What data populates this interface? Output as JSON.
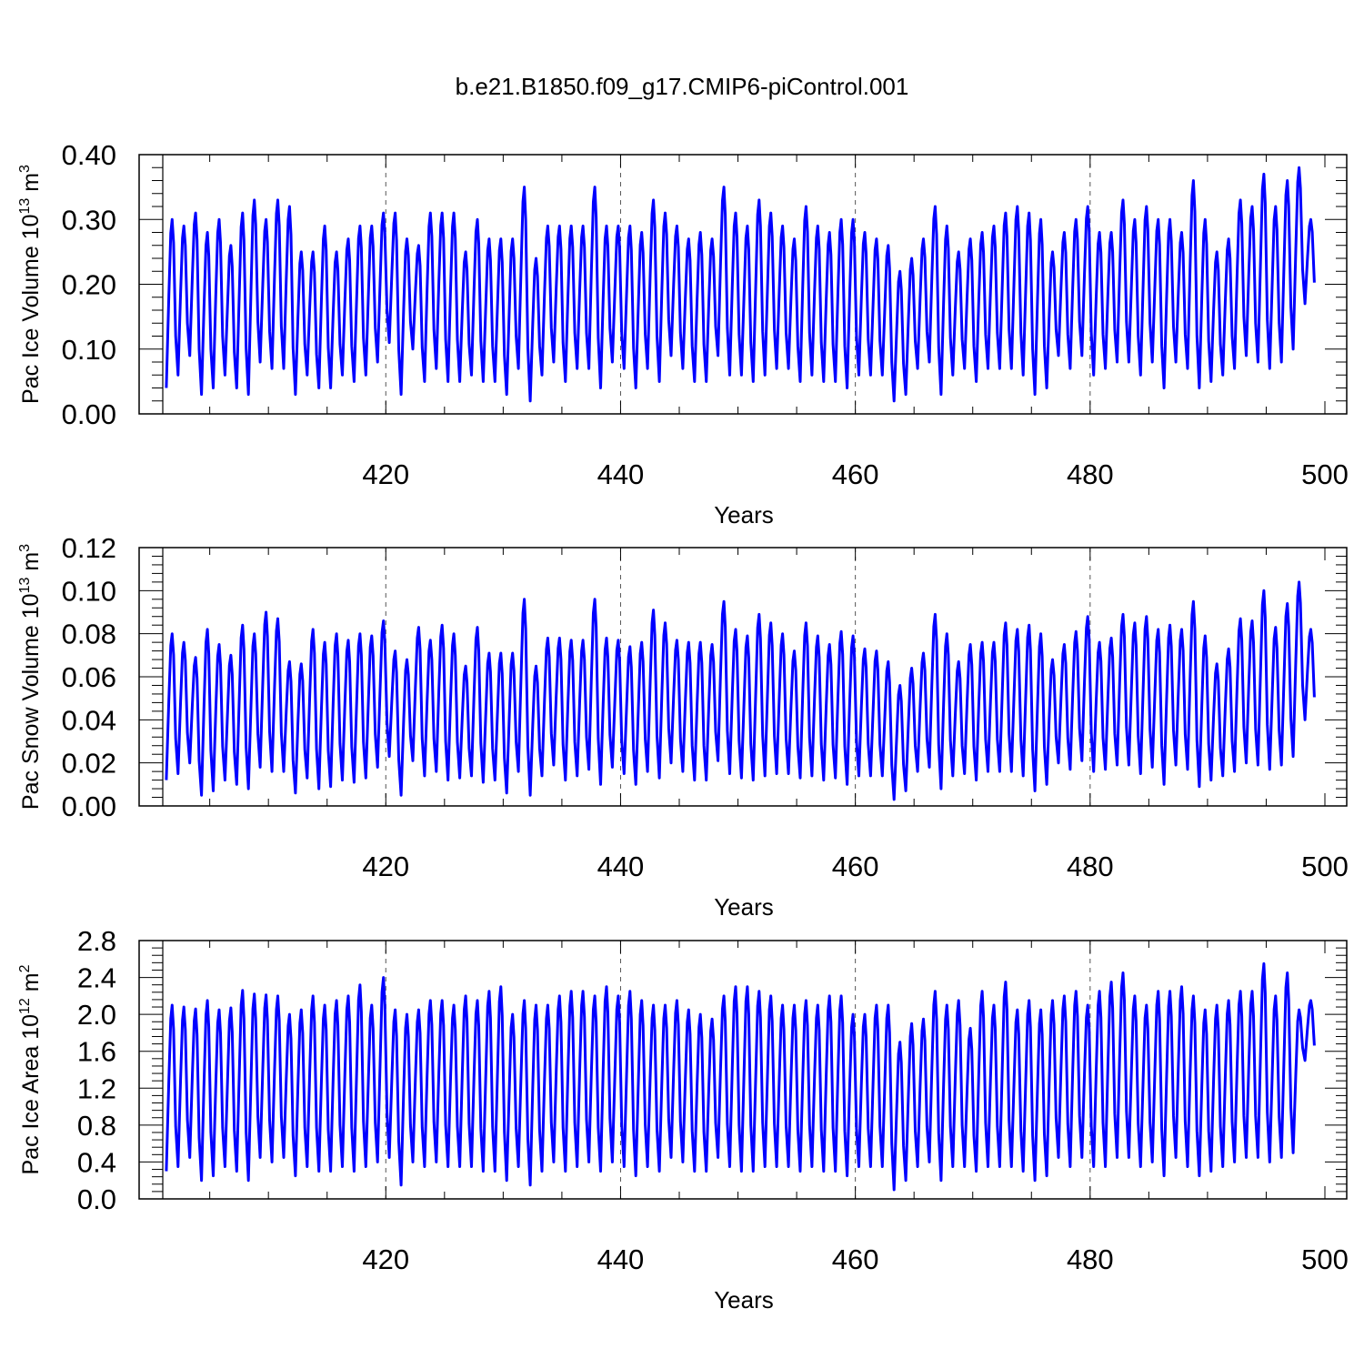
{
  "title": "b.e21.B1850.f09_g17.CMIP6-piControl.001",
  "colors": {
    "series": "#0000ff",
    "axes": "#000000",
    "grid": "#555555"
  },
  "chart_data": [
    {
      "type": "line",
      "series_name": "Pac Ice Volume",
      "ylabel_main": "Pac Ice Volume 10",
      "ylabel_exp": "13",
      "ylabel_unit": " m",
      "ylabel_unit_exp": "3",
      "xlabel": "Years",
      "xlim": [
        401,
        500
      ],
      "ylim": [
        0.0,
        0.4
      ],
      "yticks": [
        0.0,
        0.1,
        0.2,
        0.3,
        0.4
      ],
      "ytick_labels": [
        "0.00",
        "0.10",
        "0.20",
        "0.30",
        "0.40"
      ],
      "xticks": [
        420,
        440,
        460,
        480,
        500
      ],
      "xtick_labels": [
        "420",
        "440",
        "460",
        "480",
        "500"
      ],
      "vgrid": [
        420,
        440,
        460,
        480
      ],
      "annual_max": [
        0.3,
        0.29,
        0.31,
        0.28,
        0.3,
        0.26,
        0.31,
        0.33,
        0.3,
        0.33,
        0.32,
        0.25,
        0.25,
        0.29,
        0.25,
        0.27,
        0.29,
        0.29,
        0.31,
        0.31,
        0.27,
        0.26,
        0.31,
        0.31,
        0.31,
        0.25,
        0.3,
        0.27,
        0.27,
        0.27,
        0.35,
        0.24,
        0.29,
        0.29,
        0.29,
        0.29,
        0.35,
        0.29,
        0.29,
        0.29,
        0.28,
        0.33,
        0.31,
        0.29,
        0.27,
        0.28,
        0.27,
        0.35,
        0.31,
        0.29,
        0.33,
        0.31,
        0.29,
        0.27,
        0.32,
        0.29,
        0.28,
        0.3,
        0.3,
        0.28,
        0.27,
        0.26,
        0.22,
        0.24,
        0.27,
        0.32,
        0.29,
        0.25,
        0.27,
        0.28,
        0.29,
        0.31,
        0.32,
        0.31,
        0.3,
        0.25,
        0.28,
        0.3,
        0.32,
        0.28,
        0.28,
        0.33,
        0.3,
        0.32,
        0.3,
        0.3,
        0.28,
        0.36,
        0.3,
        0.25,
        0.27,
        0.33,
        0.32,
        0.37,
        0.32,
        0.36,
        0.38,
        0.3
      ],
      "annual_min": [
        0.04,
        0.06,
        0.09,
        0.03,
        0.04,
        0.06,
        0.04,
        0.03,
        0.08,
        0.07,
        0.07,
        0.03,
        0.06,
        0.04,
        0.04,
        0.06,
        0.05,
        0.06,
        0.08,
        0.11,
        0.03,
        0.1,
        0.05,
        0.07,
        0.05,
        0.05,
        0.06,
        0.05,
        0.05,
        0.03,
        0.07,
        0.02,
        0.06,
        0.08,
        0.05,
        0.07,
        0.07,
        0.04,
        0.08,
        0.07,
        0.04,
        0.07,
        0.05,
        0.09,
        0.07,
        0.05,
        0.05,
        0.09,
        0.06,
        0.06,
        0.05,
        0.06,
        0.07,
        0.07,
        0.05,
        0.06,
        0.05,
        0.05,
        0.04,
        0.06,
        0.06,
        0.06,
        0.02,
        0.03,
        0.07,
        0.08,
        0.03,
        0.06,
        0.07,
        0.05,
        0.07,
        0.07,
        0.07,
        0.06,
        0.03,
        0.04,
        0.09,
        0.07,
        0.09,
        0.06,
        0.07,
        0.08,
        0.08,
        0.06,
        0.08,
        0.04,
        0.08,
        0.07,
        0.04,
        0.05,
        0.06,
        0.07,
        0.09,
        0.08,
        0.07,
        0.08,
        0.1,
        0.17
      ]
    },
    {
      "type": "line",
      "series_name": "Pac Snow Volume",
      "ylabel_main": "Pac Snow Volume 10",
      "ylabel_exp": "13",
      "ylabel_unit": " m",
      "ylabel_unit_exp": "3",
      "xlabel": "Years",
      "xlim": [
        401,
        500
      ],
      "ylim": [
        0.0,
        0.12
      ],
      "yticks": [
        0.0,
        0.02,
        0.04,
        0.06,
        0.08,
        0.1,
        0.12
      ],
      "ytick_labels": [
        "0.00",
        "0.02",
        "0.04",
        "0.06",
        "0.08",
        "0.10",
        "0.12"
      ],
      "xticks": [
        420,
        440,
        460,
        480,
        500
      ],
      "xtick_labels": [
        "420",
        "440",
        "460",
        "480",
        "500"
      ],
      "vgrid": [
        420,
        440,
        460,
        480
      ],
      "annual_max": [
        0.08,
        0.076,
        0.069,
        0.082,
        0.075,
        0.07,
        0.084,
        0.08,
        0.09,
        0.087,
        0.067,
        0.066,
        0.082,
        0.076,
        0.08,
        0.077,
        0.08,
        0.079,
        0.086,
        0.072,
        0.068,
        0.083,
        0.077,
        0.084,
        0.08,
        0.065,
        0.083,
        0.071,
        0.071,
        0.071,
        0.096,
        0.065,
        0.078,
        0.078,
        0.077,
        0.077,
        0.096,
        0.078,
        0.077,
        0.074,
        0.076,
        0.091,
        0.085,
        0.077,
        0.076,
        0.076,
        0.075,
        0.095,
        0.082,
        0.079,
        0.089,
        0.085,
        0.08,
        0.072,
        0.085,
        0.079,
        0.075,
        0.081,
        0.079,
        0.073,
        0.072,
        0.067,
        0.056,
        0.064,
        0.071,
        0.089,
        0.08,
        0.067,
        0.075,
        0.076,
        0.076,
        0.085,
        0.082,
        0.084,
        0.08,
        0.068,
        0.075,
        0.081,
        0.088,
        0.076,
        0.078,
        0.089,
        0.085,
        0.088,
        0.082,
        0.084,
        0.082,
        0.095,
        0.079,
        0.066,
        0.073,
        0.087,
        0.086,
        0.1,
        0.083,
        0.094,
        0.104,
        0.082
      ],
      "annual_min": [
        0.012,
        0.015,
        0.02,
        0.005,
        0.007,
        0.012,
        0.01,
        0.008,
        0.018,
        0.016,
        0.016,
        0.006,
        0.013,
        0.008,
        0.009,
        0.012,
        0.011,
        0.013,
        0.018,
        0.023,
        0.005,
        0.021,
        0.014,
        0.016,
        0.012,
        0.013,
        0.014,
        0.011,
        0.012,
        0.006,
        0.016,
        0.005,
        0.014,
        0.019,
        0.012,
        0.014,
        0.017,
        0.01,
        0.018,
        0.015,
        0.01,
        0.016,
        0.013,
        0.02,
        0.016,
        0.012,
        0.012,
        0.021,
        0.015,
        0.013,
        0.012,
        0.014,
        0.015,
        0.015,
        0.013,
        0.014,
        0.012,
        0.013,
        0.01,
        0.014,
        0.014,
        0.014,
        0.003,
        0.007,
        0.016,
        0.018,
        0.008,
        0.014,
        0.015,
        0.012,
        0.016,
        0.016,
        0.016,
        0.014,
        0.007,
        0.01,
        0.02,
        0.017,
        0.021,
        0.016,
        0.017,
        0.019,
        0.019,
        0.015,
        0.018,
        0.01,
        0.019,
        0.017,
        0.009,
        0.012,
        0.014,
        0.016,
        0.02,
        0.019,
        0.017,
        0.019,
        0.023,
        0.04
      ]
    },
    {
      "type": "line",
      "series_name": "Pac Ice Area",
      "ylabel_main": "Pac Ice Area 10",
      "ylabel_exp": "12",
      "ylabel_unit": " m",
      "ylabel_unit_exp": "2",
      "xlabel": "Years",
      "xlim": [
        401,
        500
      ],
      "ylim": [
        0.0,
        2.8
      ],
      "yticks": [
        0.0,
        0.4,
        0.8,
        1.2,
        1.6,
        2.0,
        2.4,
        2.8
      ],
      "ytick_labels": [
        "0.0",
        "0.4",
        "0.8",
        "1.2",
        "1.6",
        "2.0",
        "2.4",
        "2.8"
      ],
      "xticks": [
        420,
        440,
        460,
        480,
        500
      ],
      "xtick_labels": [
        "420",
        "440",
        "460",
        "480",
        "500"
      ],
      "vgrid": [
        420,
        440,
        460,
        480
      ],
      "annual_max": [
        2.1,
        2.08,
        2.06,
        2.15,
        2.05,
        2.07,
        2.26,
        2.22,
        2.21,
        2.2,
        2.0,
        2.05,
        2.2,
        2.1,
        2.15,
        2.2,
        2.32,
        2.1,
        2.4,
        2.05,
        2.0,
        2.05,
        2.15,
        2.15,
        2.1,
        2.2,
        2.15,
        2.25,
        2.3,
        2.0,
        2.15,
        2.1,
        2.1,
        2.2,
        2.25,
        2.25,
        2.2,
        2.3,
        2.2,
        2.25,
        2.15,
        2.1,
        2.1,
        2.15,
        2.05,
        2.0,
        1.95,
        2.2,
        2.3,
        2.3,
        2.25,
        2.2,
        2.1,
        2.1,
        2.15,
        2.1,
        2.2,
        2.2,
        2.0,
        2.0,
        2.1,
        2.1,
        1.7,
        1.9,
        1.95,
        2.25,
        2.1,
        2.15,
        1.85,
        2.25,
        2.1,
        2.35,
        2.05,
        2.15,
        2.05,
        2.15,
        2.2,
        2.25,
        2.1,
        2.25,
        2.35,
        2.45,
        2.2,
        2.1,
        2.25,
        2.25,
        2.3,
        2.2,
        2.05,
        2.1,
        2.15,
        2.25,
        2.25,
        2.55,
        2.2,
        2.45,
        2.05,
        2.15
      ],
      "annual_min": [
        0.3,
        0.35,
        0.45,
        0.2,
        0.25,
        0.35,
        0.3,
        0.2,
        0.45,
        0.4,
        0.45,
        0.25,
        0.35,
        0.3,
        0.3,
        0.35,
        0.3,
        0.35,
        0.4,
        0.45,
        0.15,
        0.4,
        0.35,
        0.4,
        0.35,
        0.35,
        0.35,
        0.3,
        0.3,
        0.2,
        0.35,
        0.15,
        0.3,
        0.4,
        0.3,
        0.35,
        0.4,
        0.3,
        0.4,
        0.35,
        0.25,
        0.35,
        0.3,
        0.45,
        0.4,
        0.3,
        0.3,
        0.45,
        0.35,
        0.3,
        0.3,
        0.35,
        0.35,
        0.35,
        0.3,
        0.35,
        0.3,
        0.3,
        0.25,
        0.35,
        0.35,
        0.35,
        0.1,
        0.2,
        0.35,
        0.4,
        0.2,
        0.35,
        0.35,
        0.3,
        0.35,
        0.35,
        0.35,
        0.3,
        0.2,
        0.25,
        0.45,
        0.35,
        0.45,
        0.35,
        0.35,
        0.45,
        0.45,
        0.35,
        0.4,
        0.25,
        0.45,
        0.35,
        0.25,
        0.3,
        0.35,
        0.4,
        0.45,
        0.45,
        0.4,
        0.45,
        0.5,
        1.5
      ]
    }
  ]
}
